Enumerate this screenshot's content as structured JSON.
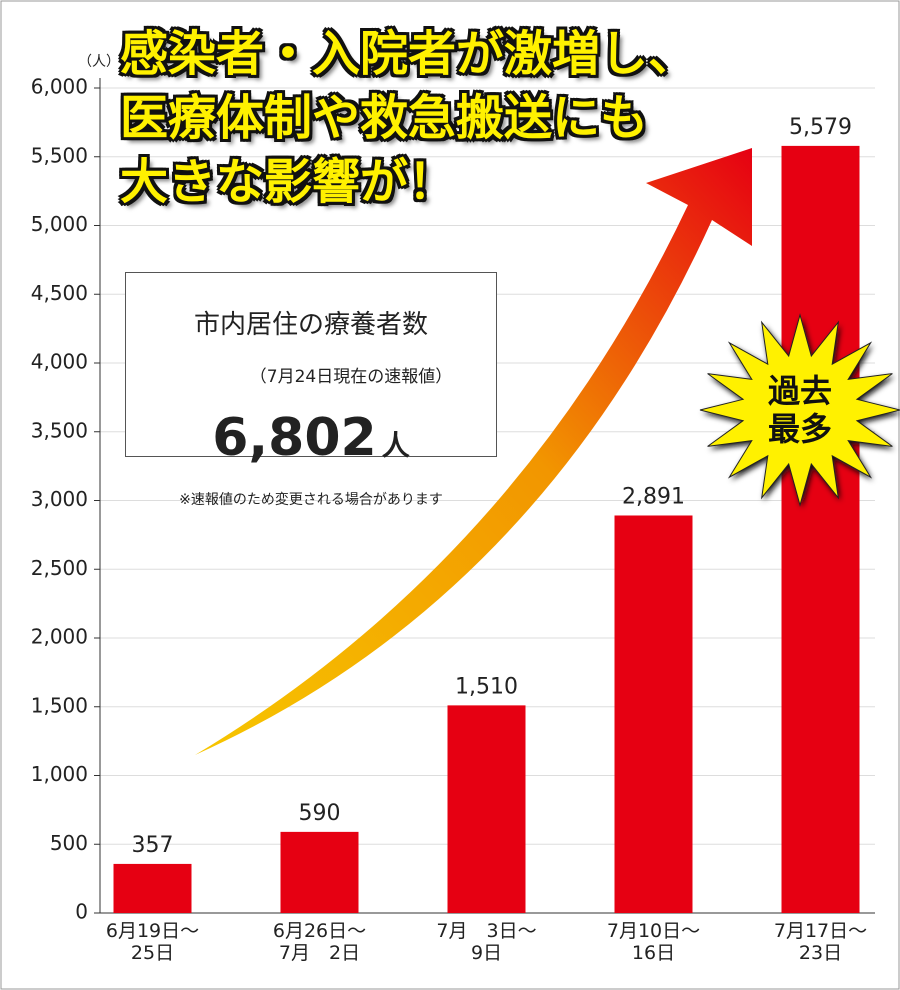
{
  "chart_data": {
    "type": "bar",
    "title": "感染者・入院者が激増し、\n医療体制や救急搬送にも\n大きな影響が！",
    "y_label": "（人）",
    "categories": [
      "6月19日～\n25日",
      "6月26日～\n7月　2日",
      "7月　3日～\n9日",
      "7月10日～\n16日",
      "7月17日～\n23日"
    ],
    "values": [
      357,
      590,
      1510,
      2891,
      5579
    ],
    "value_labels": [
      "357",
      "590",
      "1,510",
      "2,891",
      "5,579"
    ],
    "color": "#e60012",
    "ylim": [
      0,
      6000
    ],
    "yticks": [
      0,
      500,
      {
        "value": 1000,
        "label": "1,000"
      },
      {
        "value": 1500,
        "label": "1,500"
      },
      {
        "value": 2000,
        "label": "2,000"
      },
      {
        "value": 2500,
        "label": "2,500"
      },
      {
        "value": 3000,
        "label": "3,000"
      },
      {
        "value": 3500,
        "label": "3,500"
      },
      {
        "value": 4000,
        "label": "4,000"
      },
      {
        "value": 4500,
        "label": "4,500"
      },
      {
        "value": 5000,
        "label": "5,000"
      },
      {
        "value": 5500,
        "label": "5,500"
      },
      {
        "value": 6000,
        "label": "6,000"
      }
    ],
    "grid": true,
    "info_box": {
      "heading": "市内居住の療養者数",
      "subheading": "（7月24日現在の速報値）",
      "total": "6,802",
      "unit": "人",
      "note": "※速報値のため変更される場合があります"
    },
    "badge": "過去\n最多"
  }
}
